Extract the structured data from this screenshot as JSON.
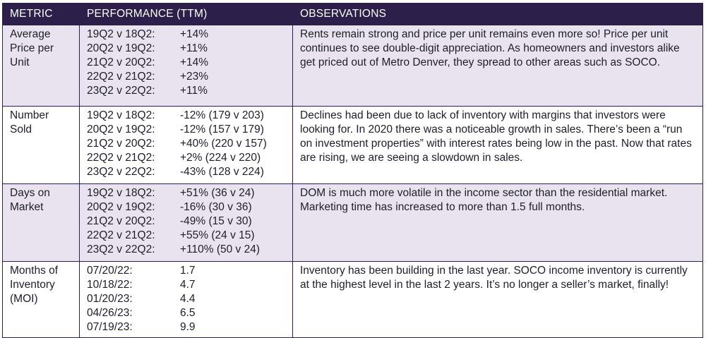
{
  "headers": {
    "metric": "METRIC",
    "performance": "PERFORMANCE (TTM)",
    "observations": "OBSERVATIONS"
  },
  "rows": [
    {
      "metric_lines": [
        "Average",
        "Price per",
        "Unit"
      ],
      "performance": [
        {
          "label": "19Q2 v 18Q2:",
          "value": "+14%"
        },
        {
          "label": "20Q2 v 19Q2:",
          "value": "+11%"
        },
        {
          "label": "21Q2 v 20Q2:",
          "value": "+14%"
        },
        {
          "label": "22Q2 v 21Q2:",
          "value": "+23%"
        },
        {
          "label": "23Q2 v 22Q2:",
          "value": "+11%"
        }
      ],
      "observations": "Rents remain strong and price per unit remains even more so! Price per unit continues to see double-digit appreciation. As homeowners and investors alike get priced out of Metro Denver, they spread to other areas such as SOCO."
    },
    {
      "metric_lines": [
        "Number",
        "Sold"
      ],
      "performance": [
        {
          "label": "19Q2 v 18Q2:",
          "value": "-12% (179 v 203)"
        },
        {
          "label": "20Q2 v 19Q2:",
          "value": "-12% (157 v 179)"
        },
        {
          "label": "21Q2 v 20Q2:",
          "value": "+40% (220 v 157)"
        },
        {
          "label": "22Q2 v 21Q2:",
          "value": "+2% (224 v 220)"
        },
        {
          "label": "23Q2 v 22Q2:",
          "value": "-43% (128 v 224)"
        }
      ],
      "observations": "Declines had been due to lack of inventory with margins that investors were looking for. In 2020 there was a noticeable growth in sales. There’s been a “run on investment properties” with interest rates being low in the past. Now that rates are rising, we are seeing a slowdown in sales."
    },
    {
      "metric_lines": [
        "Days on",
        "Market"
      ],
      "performance": [
        {
          "label": "19Q2 v 18Q2:",
          "value": "+51% (36 v 24)"
        },
        {
          "label": "20Q2 v 19Q2:",
          "value": "-16% (30 v 36)"
        },
        {
          "label": "21Q2 v 20Q2:",
          "value": "-49% (15 v 30)"
        },
        {
          "label": "22Q2 v 21Q2:",
          "value": "+55% (24 v 15)"
        },
        {
          "label": "23Q2 v 22Q2:",
          "value": "+110% (50 v 24)"
        }
      ],
      "observations": "DOM is much more volatile in the income sector than the residential market. Marketing time has increased to more than 1.5 full months."
    },
    {
      "metric_lines": [
        "Months of",
        "Inventory",
        "(MOI)"
      ],
      "performance": [
        {
          "label": "07/20/22:",
          "value": "1.7"
        },
        {
          "label": "10/18/22:",
          "value": "4.7"
        },
        {
          "label": "01/20/23:",
          "value": "4.4"
        },
        {
          "label": "04/26/23:",
          "value": "6.5"
        },
        {
          "label": "07/19/23:",
          "value": "9.9"
        }
      ],
      "observations": "Inventory has been building in the last year. SOCO income inventory is currently at the highest level in the last 2 years.  It’s no longer a seller’s market, finally!"
    }
  ]
}
